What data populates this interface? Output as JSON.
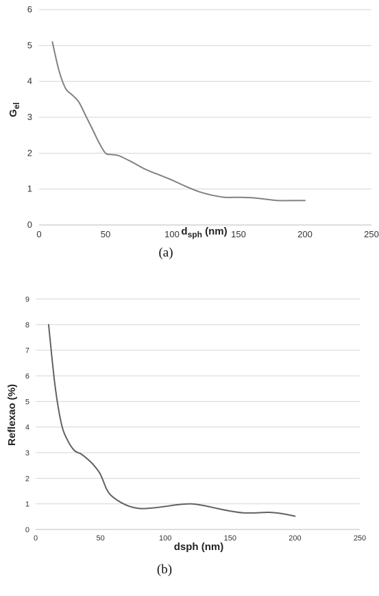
{
  "chart_data": [
    {
      "type": "line",
      "caption": "(a)",
      "xlabel_main": "d",
      "xlabel_sub": "sph",
      "xlabel_unit": " (nm)",
      "ylabel_main": "G",
      "ylabel_sub": "el",
      "xlim": [
        0,
        250
      ],
      "ylim": [
        0,
        6
      ],
      "xticks": [
        0,
        50,
        100,
        150,
        200,
        250
      ],
      "yticks": [
        0,
        1,
        2,
        3,
        4,
        5,
        6
      ],
      "grid": true,
      "series": [
        {
          "color": "#808080",
          "x": [
            10,
            15,
            20,
            25,
            30,
            35,
            40,
            45,
            50,
            55,
            60,
            70,
            80,
            90,
            100,
            110,
            120,
            130,
            140,
            150,
            160,
            170,
            180,
            190,
            200
          ],
          "y": [
            5.1,
            4.3,
            3.8,
            3.62,
            3.42,
            3.05,
            2.68,
            2.3,
            2.0,
            1.96,
            1.93,
            1.75,
            1.55,
            1.4,
            1.25,
            1.08,
            0.93,
            0.83,
            0.77,
            0.77,
            0.76,
            0.72,
            0.68,
            0.68,
            0.68
          ]
        }
      ]
    },
    {
      "type": "line",
      "caption": "(b)",
      "xlabel": "dsph (nm)",
      "ylabel": "Reflexao (%)",
      "xlim": [
        0,
        250
      ],
      "ylim": [
        0,
        9
      ],
      "xticks": [
        0,
        50,
        100,
        150,
        200,
        250
      ],
      "yticks": [
        0,
        1,
        2,
        3,
        4,
        5,
        6,
        7,
        8,
        9
      ],
      "grid": true,
      "series": [
        {
          "color": "#606060",
          "x": [
            10,
            15,
            20,
            25,
            30,
            35,
            40,
            45,
            50,
            55,
            60,
            70,
            80,
            90,
            100,
            110,
            120,
            130,
            140,
            150,
            160,
            170,
            180,
            190,
            200
          ],
          "y": [
            8.0,
            5.6,
            4.1,
            3.45,
            3.08,
            2.95,
            2.75,
            2.5,
            2.15,
            1.55,
            1.25,
            0.95,
            0.82,
            0.84,
            0.9,
            0.97,
            1.0,
            0.93,
            0.82,
            0.72,
            0.65,
            0.65,
            0.67,
            0.62,
            0.52
          ]
        }
      ]
    }
  ]
}
